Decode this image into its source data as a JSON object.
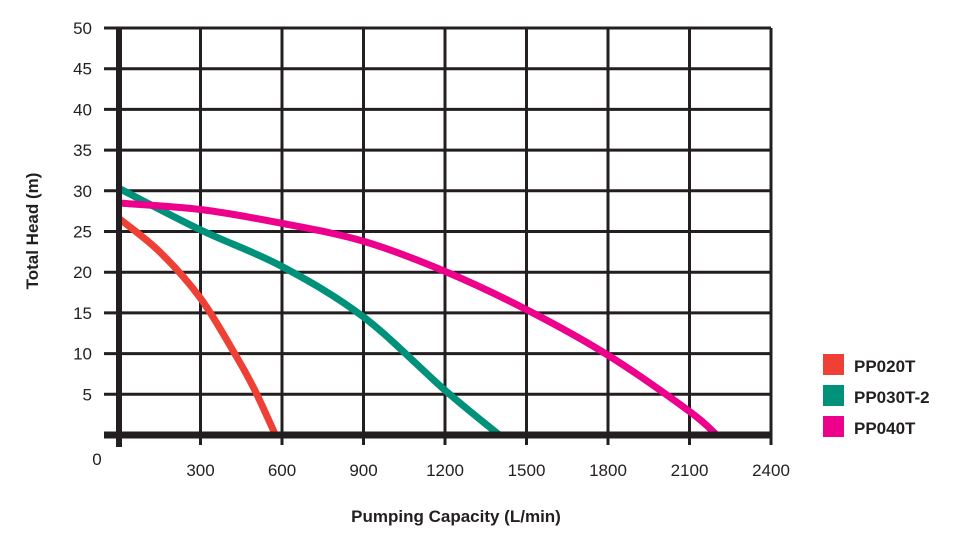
{
  "chart_data": {
    "type": "line",
    "title": "",
    "xlabel": "Pumping Capacity (L/min)",
    "ylabel": "Total Head (m)",
    "xlim": [
      0,
      2400
    ],
    "ylim": [
      0,
      50
    ],
    "xticks": [
      0,
      300,
      600,
      900,
      1200,
      1500,
      1800,
      2100,
      2400
    ],
    "yticks": [
      5,
      10,
      15,
      20,
      25,
      30,
      35,
      40,
      45,
      50
    ],
    "grid": true,
    "legend_position": "bottom-right",
    "series": [
      {
        "name": "PP020T",
        "color": "#ef4035",
        "x": [
          0,
          150,
          300,
          433,
          500,
          576
        ],
        "y": [
          26.6,
          22.5,
          16.8,
          9.6,
          5.5,
          0
        ]
      },
      {
        "name": "PP030T-2",
        "color": "#00917a",
        "x": [
          0,
          300,
          600,
          900,
          1200,
          1400
        ],
        "y": [
          30.3,
          25.2,
          20.7,
          14.5,
          5.5,
          0
        ]
      },
      {
        "name": "PP040T",
        "color": "#ec008c",
        "x": [
          0,
          300,
          600,
          900,
          1200,
          1500,
          1800,
          2100,
          2200
        ],
        "y": [
          28.5,
          27.7,
          26.0,
          23.8,
          20.1,
          15.4,
          9.8,
          2.9,
          0
        ]
      }
    ]
  }
}
